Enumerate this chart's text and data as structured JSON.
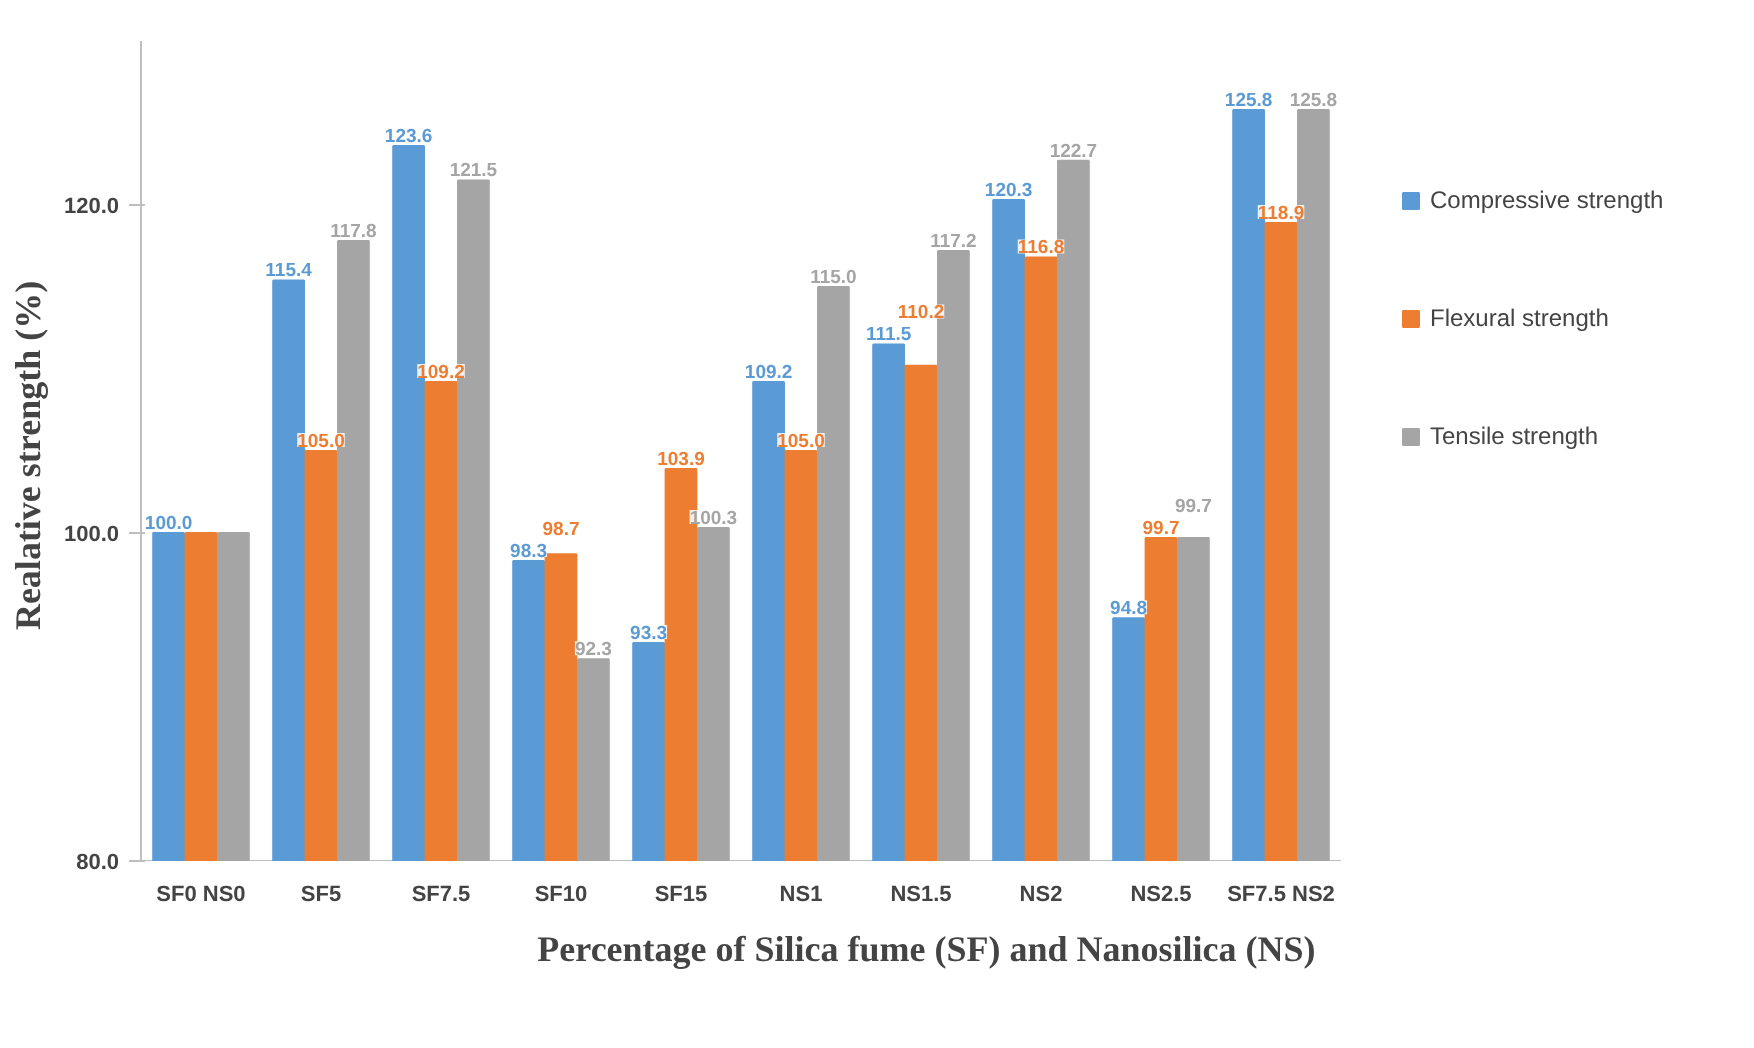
{
  "chart_data": {
    "type": "bar",
    "xlabel": "Percentage of  Silica fume (SF) and Nanosilica (NS)",
    "ylabel": "Realative  strength (%)",
    "categories": [
      "SF0 NS0",
      "SF5",
      "SF7.5",
      "SF10",
      "SF15",
      "NS1",
      "NS1.5",
      "NS2",
      "NS2.5",
      "SF7.5 NS2"
    ],
    "series": [
      {
        "name": "Compressive strength",
        "color": "#5b9bd5",
        "values": [
          100.0,
          115.4,
          123.6,
          98.3,
          93.3,
          109.2,
          111.5,
          120.3,
          94.8,
          125.8
        ],
        "value_labels": [
          "100.0",
          "115.4",
          "123.6",
          "98.3",
          "93.3",
          "109.2",
          "111.5",
          "120.3",
          "94.8",
          "125.8"
        ]
      },
      {
        "name": "Flexural strength",
        "color": "#ed7d31",
        "values": [
          100.0,
          105.0,
          109.2,
          98.7,
          103.9,
          105.0,
          110.2,
          116.8,
          99.7,
          118.9
        ],
        "value_labels": [
          null,
          "105.0",
          "109.2",
          "98.7",
          "103.9",
          "105.0",
          "110.2",
          "116.8",
          "99.7",
          "118.9"
        ]
      },
      {
        "name": "Tensile strength",
        "color": "#a5a5a5",
        "values": [
          100.0,
          117.8,
          121.5,
          92.3,
          100.3,
          115.0,
          117.2,
          122.7,
          99.7,
          125.8
        ],
        "value_labels": [
          null,
          "117.8",
          "121.5",
          "92.3",
          "100.3",
          "115.0",
          "117.2",
          "122.7",
          "99.7",
          "125.8"
        ]
      }
    ],
    "ylim": [
      80,
      130
    ],
    "yticks": [
      {
        "value": 80,
        "label": "80.0"
      },
      {
        "value": 100,
        "label": "100.0"
      },
      {
        "value": 120,
        "label": "120.0"
      }
    ],
    "grid": false,
    "legend": "right"
  }
}
